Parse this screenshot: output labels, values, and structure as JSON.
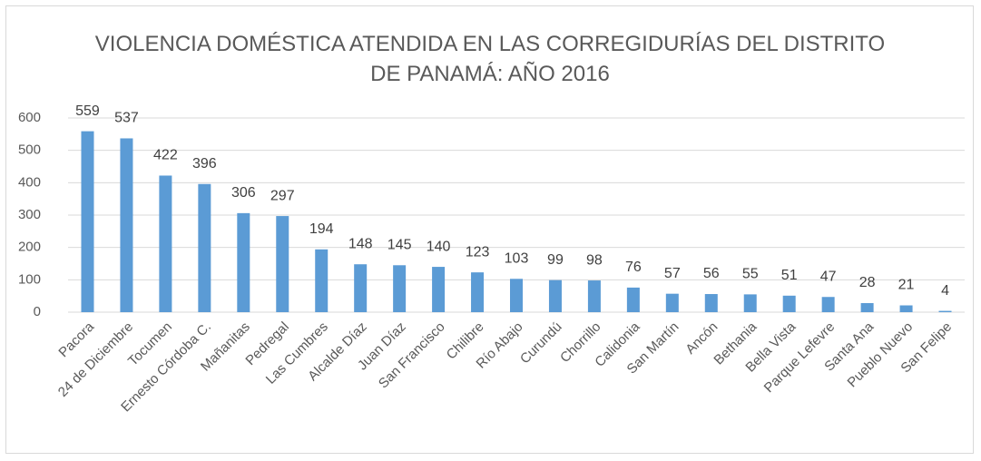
{
  "chart_data": {
    "type": "bar",
    "title": "VIOLENCIA DOMÉSTICA ATENDIDA EN LAS CORREGIDURÍAS DEL DISTRITO DE PANAMÁ: AÑO 2016",
    "categories": [
      "Pacora",
      "24 de Diciembre",
      "Tocumen",
      "Ernesto Córdoba C.",
      "Mañanitas",
      "Pedregal",
      "Las Cumbres",
      "Alcalde Díaz",
      "Juan Díaz",
      "San Francisco",
      "Chilibre",
      "Río Abajo",
      "Curundú",
      "Chorrillo",
      "Calidonia",
      "San Martín",
      "Ancón",
      "Bethania",
      "Bella Vista",
      "Parque Lefevre",
      "Santa Ana",
      "Pueblo Nuevo",
      "San Felipe"
    ],
    "values": [
      559,
      537,
      422,
      396,
      306,
      297,
      194,
      148,
      145,
      140,
      123,
      103,
      99,
      98,
      76,
      57,
      56,
      55,
      51,
      47,
      28,
      21,
      4
    ],
    "color": "#5b9bd5",
    "ylim": [
      0,
      600
    ],
    "yticks": [
      0,
      100,
      200,
      300,
      400,
      500,
      600
    ],
    "grid": true
  }
}
